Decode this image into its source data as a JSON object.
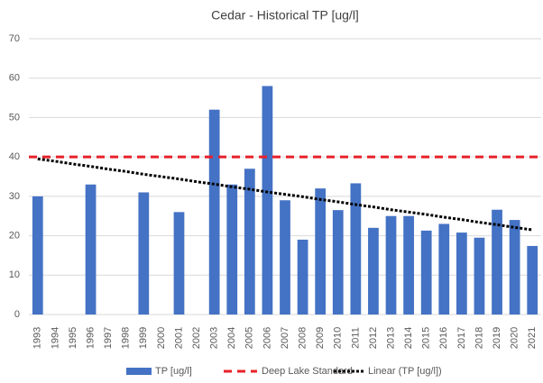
{
  "chart_data": {
    "type": "bar",
    "title": "Cedar - Historical TP [ug/l]",
    "categories": [
      "1993",
      "1994",
      "1995",
      "1996",
      "1997",
      "1998",
      "1999",
      "2000",
      "2001",
      "2002",
      "2003",
      "2004",
      "2005",
      "2006",
      "2007",
      "2008",
      "2009",
      "2010",
      "2011",
      "2012",
      "2013",
      "2014",
      "2015",
      "2016",
      "2017",
      "2018",
      "2019",
      "2020",
      "2021"
    ],
    "series": [
      {
        "name": "TP [ug/l]",
        "color": "#4472c4",
        "values": [
          30,
          null,
          null,
          33,
          null,
          null,
          31,
          null,
          26,
          null,
          52,
          33,
          37,
          58,
          29,
          19,
          32,
          26.5,
          33.3,
          22,
          25,
          25,
          21.3,
          23,
          20.8,
          19.5,
          26.6,
          24,
          17.4
        ]
      },
      {
        "name": "Linear (TP [ug/l])",
        "color": "#000000",
        "values": [
          39.5,
          38.9,
          38.2,
          37.6,
          36.9,
          36.3,
          35.6,
          35.0,
          34.4,
          33.7,
          33.1,
          32.4,
          31.8,
          31.1,
          30.5,
          29.9,
          29.2,
          28.6,
          27.9,
          27.3,
          26.6,
          26.0,
          25.4,
          24.7,
          24.1,
          23.4,
          22.8,
          22.1,
          21.5
        ]
      }
    ],
    "reference_lines": [
      {
        "name": "Deep Lake Standard",
        "color": "#e8202a",
        "value": 40
      }
    ],
    "ylim": [
      0,
      70
    ],
    "yticks": [
      0,
      10,
      20,
      30,
      40,
      50,
      60,
      70
    ],
    "grid": true
  }
}
